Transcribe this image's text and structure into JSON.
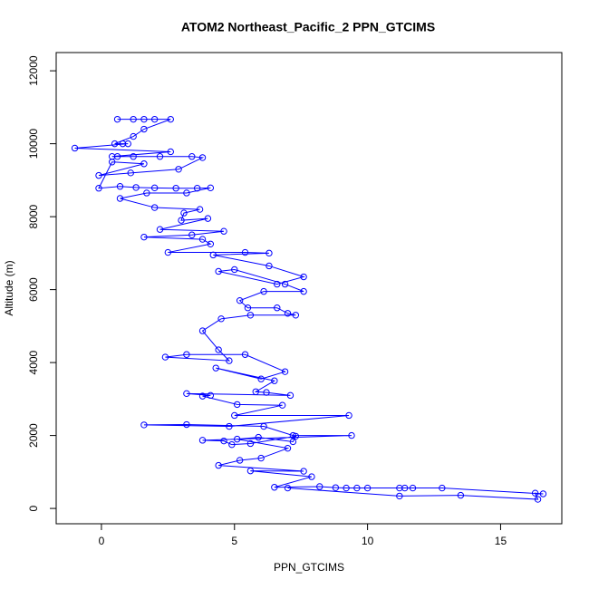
{
  "chart_data": {
    "type": "line",
    "title": "ATOM2 Northeast_Pacific_2 PPN_GTCIMS",
    "x_label": "PPN_GTCIMS",
    "y_label": "Altitude (m)",
    "color": "#0000ff",
    "markers": true,
    "grid": false,
    "xlim": [
      -1.7,
      17.3
    ],
    "ylim": [
      -420,
      12500
    ],
    "xticks": [
      0,
      5,
      10,
      15
    ],
    "yticks": [
      0,
      2000,
      4000,
      6000,
      8000,
      10000,
      12000
    ],
    "x": [
      0.6,
      1.2,
      1.6,
      2.0,
      2.6,
      1.6,
      1.2,
      0.5,
      0.8,
      1.0,
      -1.0,
      2.6,
      0.4,
      0.6,
      1.2,
      2.2,
      3.4,
      3.8,
      2.9,
      1.1,
      -0.1,
      1.6,
      0.4,
      -0.1,
      0.7,
      1.3,
      2.0,
      2.8,
      3.6,
      4.1,
      3.2,
      1.7,
      0.7,
      2.0,
      3.7,
      3.1,
      3.0,
      4.0,
      2.2,
      4.6,
      3.4,
      1.6,
      3.8,
      4.1,
      2.5,
      5.4,
      6.3,
      4.2,
      6.3,
      7.6,
      6.6,
      4.4,
      5.0,
      6.9,
      7.6,
      6.1,
      5.2,
      5.5,
      6.6,
      7.0,
      7.3,
      5.6,
      4.5,
      3.8,
      4.4,
      4.8,
      2.4,
      3.2,
      5.4,
      6.9,
      6.0,
      4.3,
      6.5,
      5.8,
      6.2,
      7.1,
      3.2,
      4.1,
      3.8,
      5.1,
      6.8,
      5.0,
      9.3,
      4.8,
      1.6,
      3.2,
      6.1,
      7.2,
      9.4,
      3.8,
      4.6,
      4.9,
      5.6,
      7.3,
      7.2,
      5.9,
      5.1,
      7.0,
      6.0,
      5.2,
      4.4,
      7.6,
      5.6,
      7.9,
      6.5,
      8.2,
      8.8,
      9.2,
      9.6,
      10.0,
      11.2,
      11.4,
      11.7,
      12.8,
      16.6,
      16.3,
      16.4,
      13.5,
      11.2,
      7.0
    ],
    "values": [
      10670,
      10670,
      10670,
      10670,
      10670,
      10400,
      10200,
      10000,
      10000,
      10000,
      9880,
      9780,
      9650,
      9650,
      9650,
      9650,
      9650,
      9620,
      9300,
      9200,
      9130,
      9450,
      9500,
      8780,
      8830,
      8800,
      8790,
      8780,
      8780,
      8790,
      8650,
      8650,
      8500,
      8250,
      8200,
      8100,
      7900,
      7950,
      7650,
      7600,
      7500,
      7440,
      7380,
      7250,
      7020,
      7020,
      7000,
      6950,
      6650,
      6350,
      6150,
      6500,
      6550,
      6150,
      5950,
      5950,
      5700,
      5500,
      5500,
      5350,
      5300,
      5300,
      5200,
      4870,
      4350,
      4050,
      4150,
      4220,
      4220,
      3750,
      3550,
      3850,
      3500,
      3200,
      3180,
      3100,
      3150,
      3100,
      3080,
      2850,
      2830,
      2550,
      2550,
      2250,
      2290,
      2300,
      2250,
      2000,
      2000,
      1870,
      1850,
      1750,
      1780,
      1980,
      1830,
      1950,
      1900,
      1650,
      1380,
      1320,
      1180,
      1020,
      1030,
      870,
      580,
      600,
      570,
      560,
      560,
      560,
      560,
      560,
      560,
      560,
      400,
      420,
      250,
      360,
      340,
      560
    ]
  }
}
